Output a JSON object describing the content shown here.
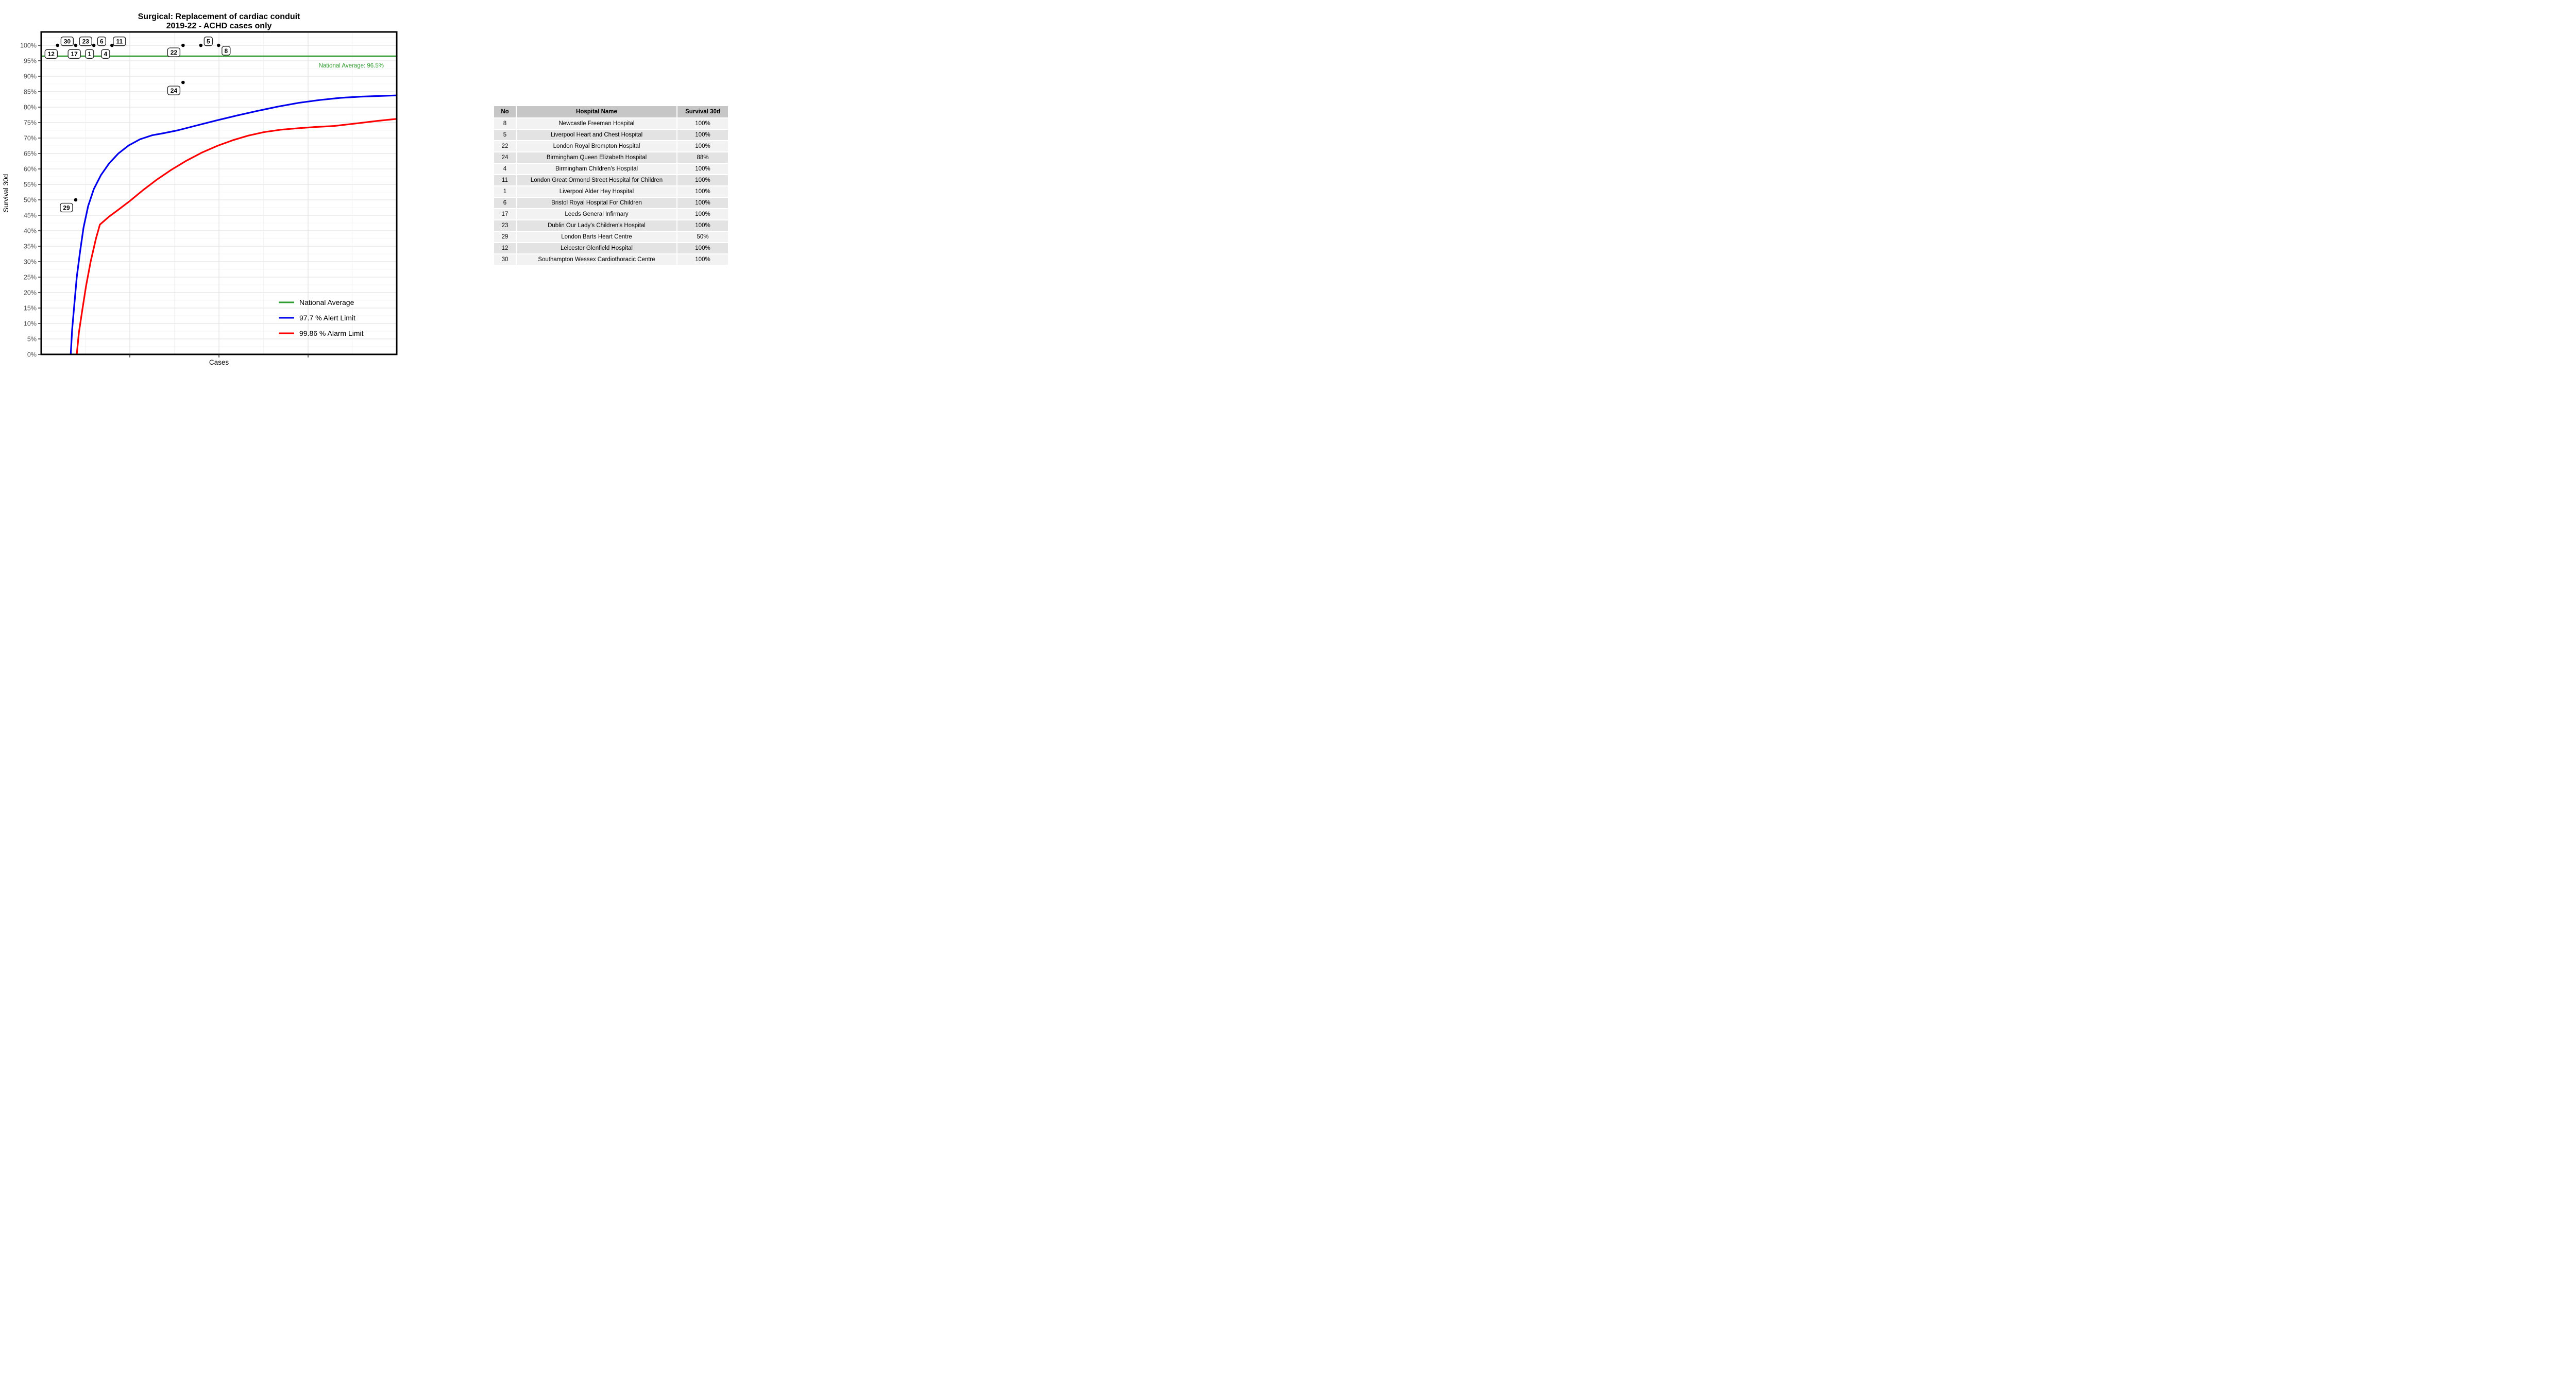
{
  "chart": {
    "title_line1": "Surgical: Replacement of cardiac conduit",
    "title_line2": "2019-22 - ACHD cases only",
    "xlabel": "Cases",
    "ylabel": "Survival 30d",
    "annotation": {
      "text": "National Average: 96.5%",
      "color": "#2E9B2E"
    },
    "legend": [
      {
        "label": "National Average",
        "color": "#2E9B2E"
      },
      {
        "label": "97.7 %  Alert Limit",
        "color": "#0000EE"
      },
      {
        "label": "99.86 %  Alarm Limit",
        "color": "#FF0000"
      }
    ]
  },
  "chart_data": {
    "type": "line",
    "title": "Surgical: Replacement of cardiac conduit 2019-22 - ACHD cases only",
    "xlabel": "Cases",
    "ylabel": "Survival 30d",
    "ylim": [
      0,
      100
    ],
    "y_ticks": [
      "0%",
      "5%",
      "10%",
      "15%",
      "20%",
      "25%",
      "30%",
      "35%",
      "40%",
      "45%",
      "50%",
      "55%",
      "60%",
      "65%",
      "70%",
      "75%",
      "80%",
      "85%",
      "90%",
      "95%",
      "100%"
    ],
    "grid": {
      "y_major_step": 5,
      "y_minor_step": 2.5,
      "x_major": [
        0.2493,
        0.5,
        0.7507
      ],
      "x_minor": [
        0.1239,
        0.3746,
        0.6254,
        0.8754
      ]
    },
    "reference_line": {
      "name": "National Average",
      "value": 96.5,
      "color": "#2E9B2E"
    },
    "series": [
      {
        "name": "97.7 %  Alert Limit",
        "color": "#0000EE",
        "points": [
          [
            0.083,
            0
          ],
          [
            0.087,
            8
          ],
          [
            0.093,
            16
          ],
          [
            0.1,
            25
          ],
          [
            0.109,
            33
          ],
          [
            0.119,
            41
          ],
          [
            0.132,
            48
          ],
          [
            0.148,
            53.5
          ],
          [
            0.168,
            58
          ],
          [
            0.191,
            61.8
          ],
          [
            0.217,
            65
          ],
          [
            0.246,
            67.6
          ],
          [
            0.278,
            69.6
          ],
          [
            0.312,
            70.9
          ],
          [
            0.341,
            71.5
          ],
          [
            0.384,
            72.5
          ],
          [
            0.435,
            74
          ],
          [
            0.493,
            75.7
          ],
          [
            0.551,
            77.3
          ],
          [
            0.609,
            78.8
          ],
          [
            0.667,
            80.2
          ],
          [
            0.725,
            81.4
          ],
          [
            0.783,
            82.3
          ],
          [
            0.841,
            83
          ],
          [
            0.899,
            83.4
          ],
          [
            0.949,
            83.6
          ],
          [
            1,
            83.8
          ]
        ]
      },
      {
        "name": "99.86 %  Alarm Limit",
        "color": "#FF0000",
        "points": [
          [
            0.1,
            0
          ],
          [
            0.106,
            7
          ],
          [
            0.115,
            14
          ],
          [
            0.126,
            22
          ],
          [
            0.139,
            30
          ],
          [
            0.154,
            37.5
          ],
          [
            0.165,
            42
          ],
          [
            0.191,
            44.6
          ],
          [
            0.217,
            46.8
          ],
          [
            0.249,
            49.6
          ],
          [
            0.287,
            53.2
          ],
          [
            0.326,
            56.6
          ],
          [
            0.367,
            59.8
          ],
          [
            0.409,
            62.7
          ],
          [
            0.452,
            65.3
          ],
          [
            0.496,
            67.5
          ],
          [
            0.539,
            69.3
          ],
          [
            0.583,
            70.8
          ],
          [
            0.626,
            71.9
          ],
          [
            0.674,
            72.7
          ],
          [
            0.725,
            73.2
          ],
          [
            0.775,
            73.6
          ],
          [
            0.823,
            73.9
          ],
          [
            0.884,
            74.7
          ],
          [
            0.942,
            75.5
          ],
          [
            1,
            76.2
          ]
        ]
      }
    ],
    "hospital_points": [
      {
        "x": 0.046,
        "y": 100
      },
      {
        "x": 0.097,
        "y": 100
      },
      {
        "x": 0.148,
        "y": 100
      },
      {
        "x": 0.199,
        "y": 100
      },
      {
        "x": 0.399,
        "y": 100
      },
      {
        "x": 0.449,
        "y": 100
      },
      {
        "x": 0.499,
        "y": 100
      },
      {
        "x": 0.399,
        "y": 88
      },
      {
        "x": 0.097,
        "y": 50
      }
    ],
    "hospital_labels": [
      {
        "text": "30",
        "x": 0.073,
        "y": 101.3
      },
      {
        "text": "23",
        "x": 0.125,
        "y": 101.3
      },
      {
        "text": "6",
        "x": 0.17,
        "y": 101.3
      },
      {
        "text": "11",
        "x": 0.22,
        "y": 101.3
      },
      {
        "text": "12",
        "x": 0.028,
        "y": 97.2
      },
      {
        "text": "17",
        "x": 0.093,
        "y": 97.2
      },
      {
        "text": "1",
        "x": 0.136,
        "y": 97.2
      },
      {
        "text": "4",
        "x": 0.181,
        "y": 97.2
      },
      {
        "text": "22",
        "x": 0.373,
        "y": 97.75
      },
      {
        "text": "5",
        "x": 0.47,
        "y": 101.3
      },
      {
        "text": "8",
        "x": 0.52,
        "y": 98.25
      },
      {
        "text": "24",
        "x": 0.373,
        "y": 85.4
      },
      {
        "text": "29",
        "x": 0.071,
        "y": 47.5
      }
    ]
  },
  "table": {
    "columns": [
      "No",
      "Hospital Name",
      "Survival 30d"
    ],
    "rows": [
      [
        "8",
        "Newcastle Freeman Hospital",
        "100%"
      ],
      [
        "5",
        "Liverpool Heart and Chest Hospital",
        "100%"
      ],
      [
        "22",
        "London Royal Brompton Hospital",
        "100%"
      ],
      [
        "24",
        "Birmingham Queen Elizabeth Hospital",
        "88%"
      ],
      [
        "4",
        "Birmingham Children's Hospital",
        "100%"
      ],
      [
        "11",
        "London Great Ormond Street Hospital for Children",
        "100%"
      ],
      [
        "1",
        "Liverpool Alder Hey Hospital",
        "100%"
      ],
      [
        "6",
        "Bristol Royal Hospital For Children",
        "100%"
      ],
      [
        "17",
        "Leeds General Infirmary",
        "100%"
      ],
      [
        "23",
        "Dublin Our Lady's Children's Hospital",
        "100%"
      ],
      [
        "29",
        "London Barts Heart Centre",
        "50%"
      ],
      [
        "12",
        "Leicester Glenfield Hospital",
        "100%"
      ],
      [
        "30",
        "Southampton Wessex Cardiothoracic Centre",
        "100%"
      ]
    ]
  }
}
